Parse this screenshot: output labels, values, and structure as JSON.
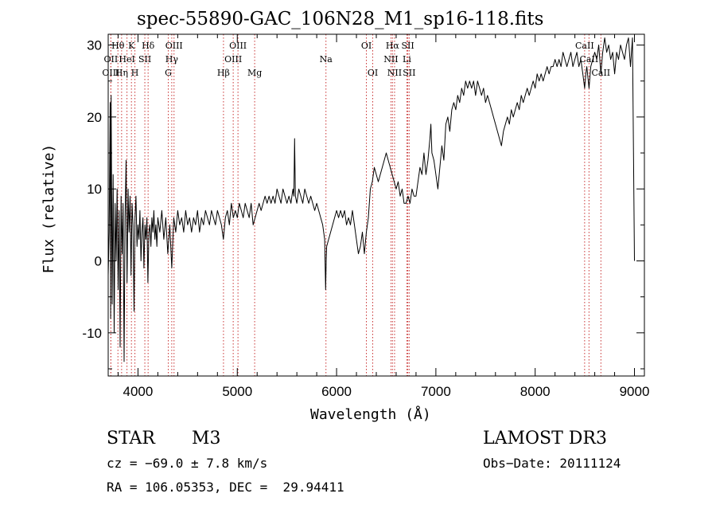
{
  "chart_data": {
    "type": "line",
    "title": "spec-55890-GAC_106N28_M1_sp16-118.fits",
    "xlabel": "Wavelength (Å)",
    "ylabel": "Flux (relative)",
    "xlim": [
      3700,
      9100
    ],
    "ylim": [
      -16,
      31.5
    ],
    "xticks": [
      4000,
      5000,
      6000,
      7000,
      8000,
      9000
    ],
    "yticks": [
      -10,
      0,
      10,
      20,
      30
    ],
    "grid": false,
    "line_color": "#000000",
    "marker_color": "#c83232",
    "spectrum": [
      [
        3700,
        -2
      ],
      [
        3710,
        4
      ],
      [
        3720,
        22
      ],
      [
        3725,
        -8
      ],
      [
        3730,
        23
      ],
      [
        3740,
        -6
      ],
      [
        3750,
        12
      ],
      [
        3760,
        -10
      ],
      [
        3770,
        8
      ],
      [
        3780,
        0
      ],
      [
        3790,
        10
      ],
      [
        3800,
        -4
      ],
      [
        3810,
        7
      ],
      [
        3820,
        -12
      ],
      [
        3830,
        9
      ],
      [
        3840,
        1
      ],
      [
        3850,
        8
      ],
      [
        3860,
        -14
      ],
      [
        3870,
        6
      ],
      [
        3880,
        14
      ],
      [
        3890,
        -3
      ],
      [
        3900,
        10
      ],
      [
        3910,
        4
      ],
      [
        3920,
        9
      ],
      [
        3930,
        -2
      ],
      [
        3940,
        8
      ],
      [
        3950,
        5
      ],
      [
        3960,
        -7
      ],
      [
        3970,
        6
      ],
      [
        3980,
        9
      ],
      [
        3990,
        2
      ],
      [
        4000,
        5
      ],
      [
        4010,
        3
      ],
      [
        4020,
        7
      ],
      [
        4030,
        0
      ],
      [
        4040,
        4
      ],
      [
        4050,
        6
      ],
      [
        4060,
        -1
      ],
      [
        4070,
        5
      ],
      [
        4080,
        3
      ],
      [
        4090,
        6
      ],
      [
        4100,
        -3
      ],
      [
        4110,
        4
      ],
      [
        4120,
        5
      ],
      [
        4130,
        2
      ],
      [
        4140,
        6
      ],
      [
        4150,
        4
      ],
      [
        4160,
        7
      ],
      [
        4170,
        3
      ],
      [
        4180,
        5
      ],
      [
        4190,
        2
      ],
      [
        4200,
        6
      ],
      [
        4220,
        4
      ],
      [
        4240,
        7
      ],
      [
        4260,
        3
      ],
      [
        4280,
        6
      ],
      [
        4300,
        1
      ],
      [
        4320,
        5
      ],
      [
        4340,
        -1
      ],
      [
        4360,
        6
      ],
      [
        4380,
        4
      ],
      [
        4400,
        7
      ],
      [
        4420,
        5
      ],
      [
        4440,
        6
      ],
      [
        4460,
        4
      ],
      [
        4480,
        7
      ],
      [
        4500,
        5
      ],
      [
        4520,
        6
      ],
      [
        4540,
        4
      ],
      [
        4560,
        6
      ],
      [
        4580,
        5
      ],
      [
        4600,
        7
      ],
      [
        4620,
        4
      ],
      [
        4640,
        6
      ],
      [
        4660,
        5
      ],
      [
        4680,
        7
      ],
      [
        4700,
        6
      ],
      [
        4720,
        5
      ],
      [
        4740,
        7
      ],
      [
        4760,
        6
      ],
      [
        4780,
        5
      ],
      [
        4800,
        7
      ],
      [
        4820,
        6
      ],
      [
        4840,
        5
      ],
      [
        4860,
        3
      ],
      [
        4880,
        6
      ],
      [
        4900,
        7
      ],
      [
        4920,
        5
      ],
      [
        4940,
        8
      ],
      [
        4960,
        6
      ],
      [
        4980,
        7
      ],
      [
        5000,
        6
      ],
      [
        5020,
        8
      ],
      [
        5040,
        7
      ],
      [
        5060,
        6
      ],
      [
        5080,
        8
      ],
      [
        5100,
        7
      ],
      [
        5120,
        6
      ],
      [
        5140,
        8
      ],
      [
        5160,
        5
      ],
      [
        5180,
        6
      ],
      [
        5200,
        7
      ],
      [
        5220,
        8
      ],
      [
        5240,
        7
      ],
      [
        5260,
        8
      ],
      [
        5280,
        9
      ],
      [
        5300,
        8
      ],
      [
        5320,
        9
      ],
      [
        5340,
        8
      ],
      [
        5360,
        9
      ],
      [
        5380,
        8
      ],
      [
        5400,
        10
      ],
      [
        5420,
        9
      ],
      [
        5440,
        8
      ],
      [
        5460,
        10
      ],
      [
        5480,
        9
      ],
      [
        5500,
        8
      ],
      [
        5520,
        9
      ],
      [
        5540,
        8
      ],
      [
        5560,
        10
      ],
      [
        5570,
        9
      ],
      [
        5577,
        17
      ],
      [
        5585,
        9
      ],
      [
        5600,
        8
      ],
      [
        5620,
        10
      ],
      [
        5640,
        9
      ],
      [
        5660,
        8
      ],
      [
        5680,
        10
      ],
      [
        5700,
        9
      ],
      [
        5720,
        8
      ],
      [
        5740,
        9
      ],
      [
        5760,
        8
      ],
      [
        5780,
        7
      ],
      [
        5800,
        8
      ],
      [
        5820,
        7
      ],
      [
        5840,
        6
      ],
      [
        5860,
        5
      ],
      [
        5880,
        3
      ],
      [
        5890,
        -4
      ],
      [
        5895,
        0
      ],
      [
        5900,
        2
      ],
      [
        5920,
        3
      ],
      [
        5940,
        4
      ],
      [
        5960,
        5
      ],
      [
        5980,
        6
      ],
      [
        6000,
        7
      ],
      [
        6020,
        6
      ],
      [
        6040,
        7
      ],
      [
        6060,
        6
      ],
      [
        6080,
        7
      ],
      [
        6100,
        5
      ],
      [
        6120,
        6
      ],
      [
        6140,
        5
      ],
      [
        6160,
        7
      ],
      [
        6180,
        5
      ],
      [
        6200,
        3
      ],
      [
        6220,
        1
      ],
      [
        6240,
        2
      ],
      [
        6260,
        4
      ],
      [
        6280,
        1
      ],
      [
        6300,
        4
      ],
      [
        6320,
        6
      ],
      [
        6340,
        10
      ],
      [
        6360,
        11
      ],
      [
        6380,
        13
      ],
      [
        6400,
        12
      ],
      [
        6420,
        11
      ],
      [
        6440,
        12
      ],
      [
        6460,
        13
      ],
      [
        6480,
        14
      ],
      [
        6500,
        15
      ],
      [
        6520,
        14
      ],
      [
        6540,
        13
      ],
      [
        6560,
        12
      ],
      [
        6580,
        11
      ],
      [
        6600,
        10
      ],
      [
        6620,
        11
      ],
      [
        6640,
        9
      ],
      [
        6660,
        10
      ],
      [
        6680,
        8
      ],
      [
        6700,
        8
      ],
      [
        6720,
        9
      ],
      [
        6740,
        8
      ],
      [
        6760,
        10
      ],
      [
        6780,
        9
      ],
      [
        6800,
        9
      ],
      [
        6820,
        11
      ],
      [
        6840,
        13
      ],
      [
        6860,
        12
      ],
      [
        6880,
        15
      ],
      [
        6900,
        12
      ],
      [
        6920,
        14
      ],
      [
        6940,
        17
      ],
      [
        6950,
        19
      ],
      [
        6960,
        15
      ],
      [
        6980,
        14
      ],
      [
        7000,
        12
      ],
      [
        7020,
        10
      ],
      [
        7040,
        13
      ],
      [
        7060,
        16
      ],
      [
        7080,
        14
      ],
      [
        7100,
        19
      ],
      [
        7120,
        20
      ],
      [
        7140,
        18
      ],
      [
        7160,
        21
      ],
      [
        7180,
        22
      ],
      [
        7200,
        21
      ],
      [
        7220,
        23
      ],
      [
        7240,
        22
      ],
      [
        7260,
        24
      ],
      [
        7280,
        23
      ],
      [
        7300,
        25
      ],
      [
        7320,
        24
      ],
      [
        7340,
        25
      ],
      [
        7360,
        24
      ],
      [
        7380,
        25
      ],
      [
        7400,
        23
      ],
      [
        7420,
        25
      ],
      [
        7440,
        24
      ],
      [
        7460,
        23
      ],
      [
        7480,
        24
      ],
      [
        7500,
        22
      ],
      [
        7520,
        23
      ],
      [
        7540,
        22
      ],
      [
        7560,
        21
      ],
      [
        7580,
        20
      ],
      [
        7600,
        19
      ],
      [
        7620,
        18
      ],
      [
        7640,
        17
      ],
      [
        7660,
        16
      ],
      [
        7680,
        18
      ],
      [
        7700,
        19
      ],
      [
        7720,
        20
      ],
      [
        7740,
        19
      ],
      [
        7760,
        21
      ],
      [
        7780,
        20
      ],
      [
        7800,
        21
      ],
      [
        7820,
        22
      ],
      [
        7840,
        21
      ],
      [
        7860,
        23
      ],
      [
        7880,
        22
      ],
      [
        7900,
        23
      ],
      [
        7920,
        24
      ],
      [
        7940,
        23
      ],
      [
        7960,
        24
      ],
      [
        7980,
        25
      ],
      [
        8000,
        24
      ],
      [
        8020,
        26
      ],
      [
        8040,
        25
      ],
      [
        8060,
        26
      ],
      [
        8080,
        25
      ],
      [
        8100,
        26
      ],
      [
        8120,
        27
      ],
      [
        8140,
        26
      ],
      [
        8160,
        27
      ],
      [
        8180,
        27
      ],
      [
        8200,
        28
      ],
      [
        8220,
        27
      ],
      [
        8240,
        28
      ],
      [
        8260,
        27
      ],
      [
        8280,
        29
      ],
      [
        8300,
        28
      ],
      [
        8320,
        27
      ],
      [
        8340,
        28
      ],
      [
        8360,
        29
      ],
      [
        8380,
        27
      ],
      [
        8400,
        28
      ],
      [
        8420,
        29
      ],
      [
        8440,
        27
      ],
      [
        8460,
        28
      ],
      [
        8480,
        26
      ],
      [
        8498,
        24
      ],
      [
        8510,
        26
      ],
      [
        8520,
        27
      ],
      [
        8542,
        24
      ],
      [
        8560,
        27
      ],
      [
        8580,
        28
      ],
      [
        8600,
        29
      ],
      [
        8620,
        28
      ],
      [
        8640,
        30
      ],
      [
        8662,
        26
      ],
      [
        8680,
        29
      ],
      [
        8700,
        31
      ],
      [
        8720,
        29
      ],
      [
        8740,
        30
      ],
      [
        8760,
        28
      ],
      [
        8780,
        29
      ],
      [
        8800,
        26
      ],
      [
        8820,
        29
      ],
      [
        8840,
        28
      ],
      [
        8860,
        30
      ],
      [
        8880,
        29
      ],
      [
        8900,
        28
      ],
      [
        8920,
        30
      ],
      [
        8940,
        31
      ],
      [
        8960,
        27
      ],
      [
        8980,
        31
      ],
      [
        9000,
        0
      ]
    ],
    "line_markers": [
      {
        "label": "Hθ",
        "x": 3798,
        "row": 1
      },
      {
        "label": "OII",
        "x": 3727,
        "row": 2
      },
      {
        "label": "OIII",
        "x": 3727,
        "row": 3
      },
      {
        "label": "K",
        "x": 3934,
        "row": 1
      },
      {
        "label": "HeI",
        "x": 3889,
        "row": 2
      },
      {
        "label": "Hη",
        "x": 3835,
        "row": 3
      },
      {
        "label": "Hδ",
        "x": 4102,
        "row": 1
      },
      {
        "label": "SII",
        "x": 4069,
        "row": 2
      },
      {
        "label": "H",
        "x": 3969,
        "row": 3
      },
      {
        "label": "OIII",
        "x": 4363,
        "row": 1
      },
      {
        "label": "Hγ",
        "x": 4340,
        "row": 2
      },
      {
        "label": "G",
        "x": 4305,
        "row": 3
      },
      {
        "label": "OIII",
        "x": 5007,
        "row": 1
      },
      {
        "label": "OIII",
        "x": 4959,
        "row": 2
      },
      {
        "label": "Hβ",
        "x": 4861,
        "row": 3
      },
      {
        "label": "Mg",
        "x": 5175,
        "row": 3
      },
      {
        "label": "Na",
        "x": 5893,
        "row": 2
      },
      {
        "label": "OI",
        "x": 6300,
        "row": 1
      },
      {
        "label": "OI",
        "x": 6364,
        "row": 3
      },
      {
        "label": "Hα",
        "x": 6563,
        "row": 1
      },
      {
        "label": "NII",
        "x": 6548,
        "row": 2
      },
      {
        "label": "NII",
        "x": 6584,
        "row": 3
      },
      {
        "label": "SII",
        "x": 6717,
        "row": 1
      },
      {
        "label": "Li",
        "x": 6708,
        "row": 2
      },
      {
        "label": "SII",
        "x": 6731,
        "row": 3
      },
      {
        "label": "CaII",
        "x": 8498,
        "row": 1
      },
      {
        "label": "CaII",
        "x": 8542,
        "row": 2
      },
      {
        "label": "CaII",
        "x": 8662,
        "row": 3
      }
    ]
  },
  "info": {
    "star_label": "STAR",
    "subclass": "M3",
    "survey": "LAMOST DR3",
    "cz": "cz = −69.0 ± 7.8 km/s",
    "obs_date": "Obs−Date: 20111124",
    "radec": "RA = 106.05353, DEC =  29.94411"
  }
}
